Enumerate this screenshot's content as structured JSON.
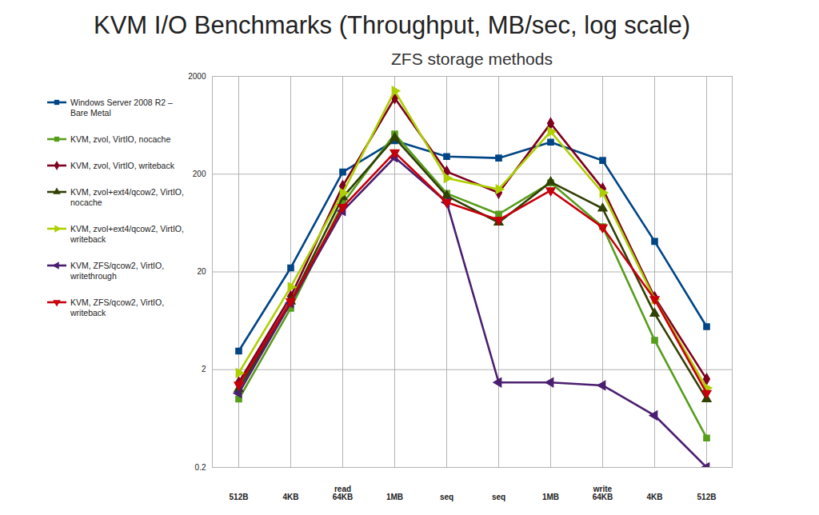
{
  "chart_data": {
    "type": "line",
    "title": "KVM I/O Benchmarks (Throughput, MB/sec, log scale)",
    "subtitle": "ZFS storage methods",
    "categories": [
      "512B",
      "4KB",
      "read\n64KB",
      "1MB",
      "seq",
      "seq",
      "1MB",
      "write\n64KB",
      "4KB",
      "512B"
    ],
    "log": "y",
    "grid": true,
    "legend": "left",
    "ylim": [
      0.2,
      2000
    ],
    "yticks": [
      0.2,
      2,
      20,
      200,
      2000
    ],
    "series": [
      {
        "name": "Windows Server 2008 R2 – Bare Metal",
        "color": "#004586",
        "marker": "square",
        "values": [
          3.1,
          22,
          210,
          440,
          303,
          292,
          425,
          276,
          41,
          5.5
        ]
      },
      {
        "name": "KVM, zvol, VirtIO, nocache",
        "color": "#579d1c",
        "marker": "square",
        "values": [
          1.0,
          8.5,
          100,
          514,
          127,
          78,
          163,
          58,
          4.0,
          0.4
        ]
      },
      {
        "name": "KVM, zvol, VirtIO, writeback",
        "color": "#7e0021",
        "marker": "diamond",
        "values": [
          1.48,
          11.2,
          151,
          1200,
          212,
          129,
          660,
          142,
          11,
          1.6
        ]
      },
      {
        "name": "KVM, zvol+ext4/qcow2, VirtIO, nocache",
        "color": "#314004",
        "marker": "triangle",
        "values": [
          1.27,
          10,
          116,
          470,
          120,
          64,
          166,
          89,
          7.5,
          1.0
        ]
      },
      {
        "name": "KVM, zvol+ext4/qcow2, VirtIO, writeback",
        "color": "#aecf00",
        "marker": "triangle-right",
        "values": [
          1.85,
          14,
          128,
          1420,
          182,
          140,
          544,
          129,
          10.5,
          1.3
        ]
      },
      {
        "name": "KVM, ZFS/qcow2, VirtIO, writethrough",
        "color": "#4b1f6f",
        "marker": "triangle-left",
        "values": [
          1.15,
          9.6,
          84,
          297,
          103,
          1.48,
          1.48,
          1.38,
          0.68,
          0.2
        ]
      },
      {
        "name": "KVM, ZFS/qcow2, VirtIO, writeback",
        "color": "#c5000b",
        "marker": "triangle-down",
        "values": [
          1.4,
          10,
          92,
          333,
          103,
          68,
          136,
          57,
          10.5,
          1.15
        ]
      }
    ]
  }
}
